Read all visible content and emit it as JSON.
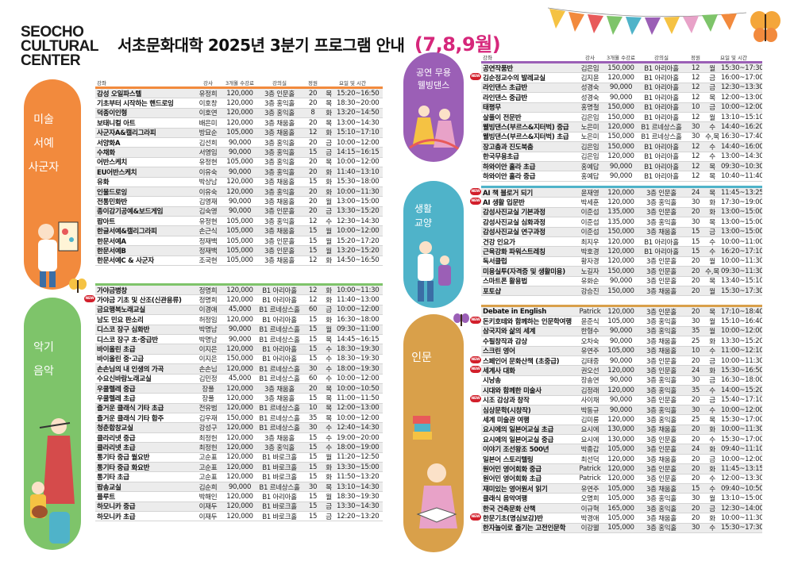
{
  "logo": [
    "SEOCHO",
    "CULTURAL",
    "CENTER"
  ],
  "title": {
    "main": "서초문화대학 2025년 3분기",
    "bold": "프로그램 안내",
    "months": "(7,8,9월)"
  },
  "new_badge": "NEW",
  "colors": {
    "orange": "#f28a3d",
    "green": "#7ec46a",
    "purple": "#9b5fb6",
    "teal": "#4fb3c9",
    "gold": "#d9a04a",
    "pink_title": "#d6277b"
  },
  "headers": {
    "name": "강좌",
    "instructor": "강사",
    "fee": "3개월 수강료",
    "room": "강의실",
    "capacity": "정원",
    "daytime": "요일 및 시간"
  },
  "sections": [
    {
      "id": "art",
      "label": [
        "미술",
        "서예",
        "사군자"
      ],
      "color": "#f28a3d",
      "rows": [
        [
          "감성 오일파스텔",
          "유정희",
          "120,000",
          "3층 인문홀",
          "20",
          "목",
          "15:20~16:50"
        ],
        [
          "기초부터 시작하는 핸드로잉",
          "이호창",
          "120,000",
          "3층 홍익홀",
          "20",
          "목",
          "18:30~20:00"
        ],
        [
          "덕종이인형",
          "이호연",
          "120,000",
          "3층 홍익홀",
          "8",
          "화",
          "13:20~14:50"
        ],
        [
          "보태니컬 아트",
          "배은미",
          "120,000",
          "3층 채움홀",
          "20",
          "목",
          "13:00~14:30"
        ],
        [
          "사군자A&캘리그라피",
          "방묘순",
          "105,000",
          "3층 채움홀",
          "12",
          "화",
          "15:10~17:10"
        ],
        [
          "서양화A",
          "김선희",
          "90,000",
          "3층 홍익홀",
          "20",
          "금",
          "10:00~12:00"
        ],
        [
          "수채화",
          "서영임",
          "90,000",
          "3층 홍익홀",
          "15",
          "금",
          "14:15~16:15"
        ],
        [
          "어반스케치",
          "유정현",
          "105,000",
          "3층 홍익홀",
          "20",
          "목",
          "10:00~12:00"
        ],
        [
          "EU어반스케치",
          "이유숙",
          "90,000",
          "3층 홍익홀",
          "20",
          "화",
          "11:40~13:10"
        ],
        [
          "유화",
          "박상남",
          "120,000",
          "3층 채움홀",
          "15",
          "화",
          "15:30~18:00"
        ],
        [
          "인물드로잉",
          "이유숙",
          "120,000",
          "3층 홍익홀",
          "20",
          "화",
          "10:00~11:30"
        ],
        [
          "전통민화반",
          "김영재",
          "90,000",
          "3층 채움홀",
          "20",
          "월",
          "13:00~15:00"
        ],
        [
          "종이감기공예&보드게임",
          "김숙영",
          "90,000",
          "3층 인문홀",
          "20",
          "금",
          "13:30~15:20"
        ],
        [
          "팝아트",
          "유정현",
          "105,000",
          "3층 홍익홀",
          "12",
          "수",
          "12:30~14:30"
        ],
        [
          "한글서예&캘리그라피",
          "손근식",
          "105,000",
          "3층 채움홀",
          "15",
          "월",
          "10:00~12:00"
        ],
        [
          "한문서예A",
          "정재백",
          "105,000",
          "3층 인문홀",
          "15",
          "월",
          "15:20~17:20"
        ],
        [
          "한문서예B",
          "정재백",
          "105,000",
          "3층 인문홀",
          "15",
          "월",
          "13:20~15:20"
        ],
        [
          "한문서예C & 사군자",
          "조국현",
          "105,000",
          "3층 채움홀",
          "12",
          "화",
          "14:50~16:50"
        ]
      ]
    },
    {
      "id": "music",
      "label": [
        "악기",
        "음악"
      ],
      "color": "#7ec46a",
      "rows": [
        [
          "가야금병창",
          "정명희",
          "120,000",
          "B1 아리아홀",
          "12",
          "화",
          "10:00~11:30"
        ],
        [
          "가야금 기초 및 산조(신관용류)",
          "정명희",
          "120,000",
          "B1 아리아홀",
          "12",
          "화",
          "11:40~13:00"
        ],
        [
          "금요행복노래교실",
          "이경애",
          "45,000",
          "B1 르네상스홀",
          "60",
          "금",
          "10:00~12:00"
        ],
        [
          "남도 민요 판소리",
          "허정임",
          "120,000",
          "B1 아리아홀",
          "15",
          "화",
          "16:30~18:00"
        ],
        [
          "디스코 장구 심화반",
          "박명남",
          "90,000",
          "B1 르네상스홀",
          "15",
          "월",
          "09:30~11:00"
        ],
        [
          "디스코 장구 초·중급반",
          "박명남",
          "90,000",
          "B1 르네상스홀",
          "15",
          "목",
          "14:45~16:15"
        ],
        [
          "바이올린 초급",
          "이지은",
          "120,000",
          "B1 아리아홀",
          "15",
          "수",
          "18:30~19:30"
        ],
        [
          "바이올린 중·고급",
          "이지은",
          "150,000",
          "B1 아리아홀",
          "15",
          "수",
          "18:30~19:30"
        ],
        [
          "손손님의 내 인생의 가곡",
          "손손님",
          "120,000",
          "B1 르네상스홀",
          "30",
          "수",
          "18:00~19:30"
        ],
        [
          "수요신바람노래교실",
          "김민정",
          "45,000",
          "B1 르네상스홀",
          "60",
          "수",
          "10:00~12:00"
        ],
        [
          "우쿨렐레 중급",
          "장풀",
          "120,000",
          "3층 채움홀",
          "20",
          "목",
          "10:00~10:50"
        ],
        [
          "우쿨렐레 초급",
          "장풀",
          "120,000",
          "3층 채움홀",
          "15",
          "목",
          "11:00~11:50"
        ],
        [
          "즐거운 클래식 기타 초급",
          "전유범",
          "120,000",
          "B1 르네상스홀",
          "10",
          "목",
          "12:00~13:00"
        ],
        [
          "즐거운 클래식 기타 합주",
          "김우재",
          "150,000",
          "B1 르네상스홀",
          "35",
          "목",
          "10:00~12:00"
        ],
        [
          "청춘합창교실",
          "강성구",
          "120,000",
          "B1 르네상스홀",
          "30",
          "수",
          "12:40~14:30"
        ],
        [
          "클라리넷 중급",
          "최정헌",
          "120,000",
          "3층 채움홀",
          "15",
          "수",
          "19:00~20:00"
        ],
        [
          "클라리넷 초급",
          "최정헌",
          "120,000",
          "3층 홍익홀",
          "15",
          "수",
          "18:00~19:00"
        ],
        [
          "통기타 중급 월요반",
          "고순표",
          "120,000",
          "B1 바로크홀",
          "15",
          "월",
          "11:20~12:50"
        ],
        [
          "통기타 중급 화요반",
          "고순표",
          "120,000",
          "B1 바로크홀",
          "15",
          "화",
          "13:30~15:00"
        ],
        [
          "통기타 초급",
          "고순표",
          "120,000",
          "B1 바로크홀",
          "15",
          "화",
          "11:50~13:20"
        ],
        [
          "팝송교실",
          "김순희",
          "90,000",
          "B1 르네상스홀",
          "30",
          "목",
          "13:10~14:30"
        ],
        [
          "플루트",
          "박해인",
          "120,000",
          "B1 아리아홀",
          "15",
          "월",
          "18:30~19:30"
        ],
        [
          "하모니카 중급",
          "이재두",
          "120,000",
          "B1 바로크홀",
          "15",
          "금",
          "13:30~14:30"
        ],
        [
          "하모니카 초급",
          "이재두",
          "120,000",
          "B1 바로크홀",
          "15",
          "금",
          "12:20~13:20"
        ]
      ]
    },
    {
      "id": "dance",
      "label": [
        "공연",
        "무용",
        "웰빙댄스"
      ],
      "color": "#9b5fb6",
      "rows": [
        [
          "공연작품반",
          "김은임",
          "150,000",
          "B1 아리아홀",
          "12",
          "월",
          "15:30~17:30"
        ],
        [
          "김순정교수의 발레교실",
          "김지윤",
          "120,000",
          "B1 아리아홀",
          "12",
          "금",
          "16:00~17:00"
        ],
        [
          "라인댄스 초급반",
          "성경숙",
          "90,000",
          "B1 아리아홀",
          "12",
          "금",
          "12:30~13:30"
        ],
        [
          "라인댄스 중급반",
          "성경숙",
          "90,000",
          "B1 아리아홀",
          "12",
          "목",
          "12:00~13:00"
        ],
        [
          "태평무",
          "홍명철",
          "150,000",
          "B1 아리아홀",
          "10",
          "금",
          "10:00~12:00"
        ],
        [
          "살풀이 전문반",
          "김은임",
          "150,000",
          "B1 아리아홀",
          "12",
          "월",
          "13:10~15:10"
        ],
        [
          "웰빙댄스(부르스&지터벅) 중급",
          "노은미",
          "120,000",
          "B1 르네상스홀",
          "30",
          "수",
          "14:40~16:20"
        ],
        [
          "웰빙댄스(부르스&지터벅) 초급",
          "노은미",
          "150,000",
          "B1 르네상스홀",
          "30",
          "수,목",
          "16:30~17:40"
        ],
        [
          "장고춤과 진도북춤",
          "김은임",
          "150,000",
          "B1 아리아홀",
          "12",
          "수",
          "14:40~16:00"
        ],
        [
          "한국무용초급",
          "김은임",
          "120,000",
          "B1 아리아홀",
          "12",
          "수",
          "13:00~14:30"
        ],
        [
          "하와이안 훌라 초급",
          "홍예답",
          "90,000",
          "B1 아리아홀",
          "12",
          "목",
          "09:30~10:30"
        ],
        [
          "하와이안 훌라 중급",
          "홍예답",
          "90,000",
          "B1 아리아홀",
          "12",
          "목",
          "10:40~11:40"
        ]
      ]
    },
    {
      "id": "life",
      "label": [
        "생활",
        "교양"
      ],
      "color": "#4fb3c9",
      "rows": [
        [
          "AI 책 블로거 되기",
          "윤재영",
          "120,000",
          "3층 인문홀",
          "24",
          "목",
          "11:45~13:25"
        ],
        [
          "AI 생활 입문반",
          "박세훈",
          "120,000",
          "3층 홍익홀",
          "30",
          "화",
          "17:30~19:00"
        ],
        [
          "감성사진교실 기본과정",
          "이준섭",
          "135,000",
          "3층 인문홀",
          "20",
          "화",
          "13:00~15:00"
        ],
        [
          "감성사진교실 심화과정",
          "이준섭",
          "135,000",
          "3층 홍익홀",
          "30",
          "목",
          "13:00~15:00"
        ],
        [
          "감성사진교실 연구과정",
          "이준섭",
          "150,000",
          "3층 채움홀",
          "15",
          "금",
          "13:00~15:00"
        ],
        [
          "건강 인요가",
          "최지우",
          "120,000",
          "B1 아리아홀",
          "15",
          "수",
          "10:00~11:00"
        ],
        [
          "근육강화 파워스트레칭",
          "박호경",
          "120,000",
          "B1 아리아홀",
          "15",
          "수",
          "16:20~17:10"
        ],
        [
          "독서클럽",
          "황자경",
          "120,000",
          "3층 인문홀",
          "20",
          "월",
          "10:00~11:30"
        ],
        [
          "미용실투(자격증 및 생활미용)",
          "노길자",
          "150,000",
          "3층 인문홀",
          "20",
          "수,목",
          "09:30~11:30"
        ],
        [
          "스마트폰 활용법",
          "유화순",
          "90,000",
          "3층 인문홀",
          "20",
          "목",
          "13:40~15:10"
        ],
        [
          "포토샵",
          "강승진",
          "150,000",
          "3층 채움홀",
          "20",
          "월",
          "15:30~17:30"
        ]
      ]
    },
    {
      "id": "humanities",
      "label": [
        "인문"
      ],
      "color": "#d9a04a",
      "rows": [
        [
          "Debate in English",
          "Patrick",
          "120,000",
          "3층 인문홀",
          "20",
          "목",
          "17:10~18:40"
        ],
        [
          "돈키호테와 함께하는 인문학여행",
          "윤준식",
          "105,000",
          "3층 홍익홀",
          "30",
          "월",
          "15:10~16:40"
        ],
        [
          "삼국지와 삶의 세계",
          "한형수",
          "90,000",
          "3층 홍익홀",
          "35",
          "월",
          "10:00~12:00"
        ],
        [
          "수필창작과 감상",
          "오차숙",
          "90,000",
          "3층 채움홀",
          "25",
          "화",
          "13:30~15:20"
        ],
        [
          "스크린 영어",
          "유연주",
          "105,000",
          "3층 채움홀",
          "10",
          "수",
          "11:00~12:10"
        ],
        [
          "스페인어 문화산책 (초중급)",
          "김태중",
          "90,000",
          "3층 인문홀",
          "20",
          "금",
          "10:00~11:30"
        ],
        [
          "세계사 대화",
          "권오선",
          "120,000",
          "3층 인문홀",
          "24",
          "화",
          "15:30~16:50"
        ],
        [
          "시낭송",
          "장송연",
          "90,000",
          "3층 홍익홀",
          "30",
          "금",
          "16:30~18:00"
        ],
        [
          "시대와 함께한 미술사",
          "김정래",
          "120,000",
          "3층 홍익홀",
          "35",
          "수",
          "14:00~15:20"
        ],
        [
          "시조 감상과 창작",
          "사이채",
          "90,000",
          "3층 인문홀",
          "20",
          "금",
          "15:40~17:10"
        ],
        [
          "심상문학(시창작)",
          "박동규",
          "90,000",
          "3층 홍익홀",
          "30",
          "수",
          "10:00~12:00"
        ],
        [
          "세계 미술관 여행",
          "김미룡",
          "120,000",
          "3층 홍익홀",
          "25",
          "목",
          "15:30~17:00"
        ],
        [
          "요시에의 일본어교실 초급",
          "요시에",
          "130,000",
          "3층 채움홀",
          "20",
          "화",
          "10:00~11:30"
        ],
        [
          "요시에의 일본어교실 중급",
          "요시에",
          "130,000",
          "3층 인문홀",
          "20",
          "수",
          "15:30~17:00"
        ],
        [
          "이야기 조선왕조 500년",
          "박종갑",
          "105,000",
          "3층 인문홀",
          "24",
          "화",
          "09:40~11:10"
        ],
        [
          "일본어 스토리텔링",
          "최선덕",
          "120,000",
          "3층 채움홀",
          "20",
          "금",
          "10:00~12:00"
        ],
        [
          "원어민 영어회화 중급",
          "Patrick",
          "120,000",
          "3층 인문홀",
          "20",
          "화",
          "11:45~13:15"
        ],
        [
          "원어민 영어회화 초급",
          "Patrick",
          "120,000",
          "3층 인문홀",
          "20",
          "수",
          "12:00~13:30"
        ],
        [
          "재미있는 영어원서 읽기",
          "유연주",
          "105,000",
          "3층 채움홀",
          "15",
          "수",
          "09:40~10:50"
        ],
        [
          "클래식 음악여행",
          "오명희",
          "105,000",
          "3층 홍익홀",
          "30",
          "월",
          "13:10~15:00"
        ],
        [
          "한국 건축문화 산책",
          "이규혁",
          "165,000",
          "3층 홍익홀",
          "20",
          "금",
          "12:30~14:00"
        ],
        [
          "한문기초(명심보감)반",
          "박경애",
          "105,000",
          "3층 채움홀",
          "20",
          "화",
          "10:00~11:30"
        ],
        [
          "한자놀이로 즐기는 고전인문학",
          "이강웰",
          "105,000",
          "3층 홍익홀",
          "30",
          "수",
          "15:30~17:30"
        ]
      ]
    }
  ]
}
